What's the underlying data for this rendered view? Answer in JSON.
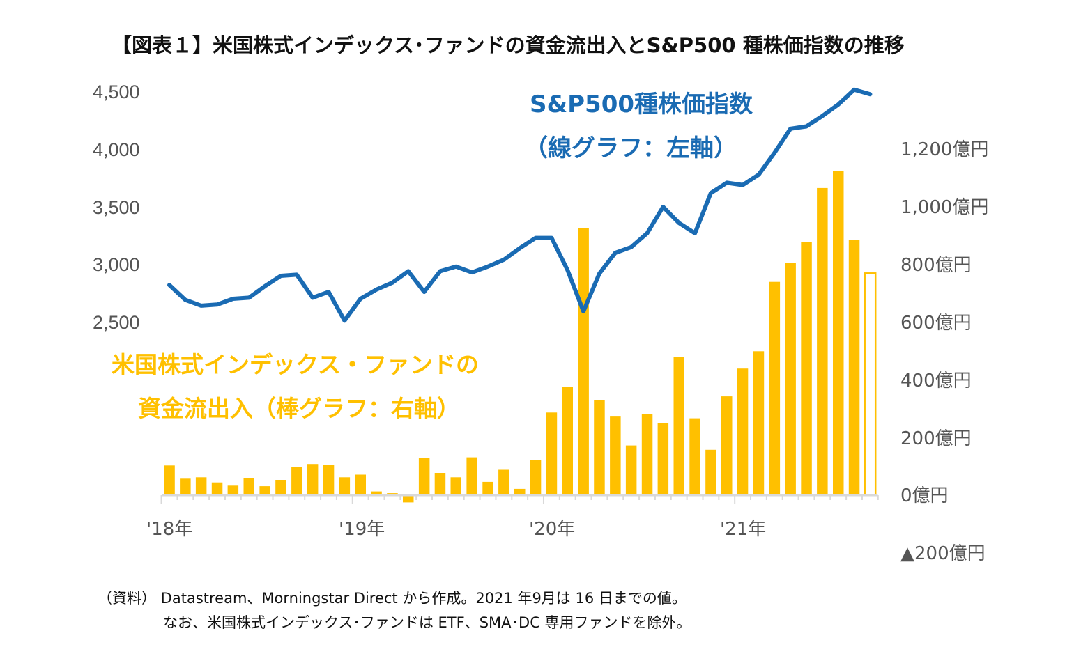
{
  "colors": {
    "line": "#1a6bb3",
    "bar": "#ffc000",
    "axis": "#d9d9d9",
    "partial_fill": "#ffffff"
  },
  "chart_data": {
    "type": "bar+line",
    "title": "【図表１】米国株式インデックス･ファンドの資金流出入とS&P500 種株価指数の推移",
    "left_axis": {
      "ticks": [
        "4,500",
        "4,000",
        "3,500",
        "3,000",
        "2,500"
      ],
      "tick_values": [
        4500,
        4000,
        3500,
        3000,
        2500
      ],
      "range": [
        1000,
        4500
      ]
    },
    "right_axis": {
      "ticks": [
        "1,200億円",
        "1,000億円",
        "800億円",
        "600億円",
        "400億円",
        "200億円",
        "0億円",
        "▲200億円"
      ],
      "tick_values": [
        1200,
        1000,
        800,
        600,
        400,
        200,
        0,
        -200
      ],
      "range": [
        -200,
        1200
      ]
    },
    "x_labels": [
      "'18年",
      "'19年",
      "'20年",
      "'21年"
    ],
    "x_label_months": [
      0,
      12,
      24,
      36
    ],
    "months": 45,
    "series": [
      {
        "name": "S&P500種株価指数",
        "axis": "left",
        "values": [
          2820,
          2690,
          2640,
          2650,
          2700,
          2710,
          2810,
          2900,
          2910,
          2710,
          2760,
          2510,
          2700,
          2780,
          2840,
          2940,
          2760,
          2940,
          2980,
          2930,
          2980,
          3040,
          3140,
          3230,
          3230,
          2950,
          2590,
          2920,
          3100,
          3150,
          3270,
          3500,
          3360,
          3270,
          3620,
          3710,
          3690,
          3780,
          3970,
          4180,
          4200,
          4290,
          4390,
          4520,
          4480
        ]
      },
      {
        "name": "米国株式インデックス・ファンドの資金流出入",
        "axis": "right",
        "values": [
          103,
          57,
          62,
          44,
          33,
          60,
          31,
          53,
          98,
          108,
          106,
          62,
          71,
          13,
          7,
          -25,
          129,
          77,
          62,
          131,
          46,
          88,
          22,
          121,
          286,
          374,
          923,
          329,
          272,
          172,
          280,
          250,
          478,
          266,
          157,
          342,
          438,
          498,
          738,
          803,
          875,
          1063,
          1122,
          883,
          768
        ],
        "last_partial": true
      }
    ],
    "annotations": {
      "line_label_1": "S&P500種株価指数",
      "line_label_2": "（線グラフ：左軸）",
      "bar_label_1": "米国株式インデックス・ファンドの",
      "bar_label_2": "資金流出入（棒グラフ：右軸）"
    },
    "source_note_1": "（資料） Datastream、Morningstar Direct から作成。2021 年9月は 16 日までの値。",
    "source_note_2": "なお、米国株式インデックス･ファンドは ETF、SMA･DC 専用ファンドを除外。"
  }
}
